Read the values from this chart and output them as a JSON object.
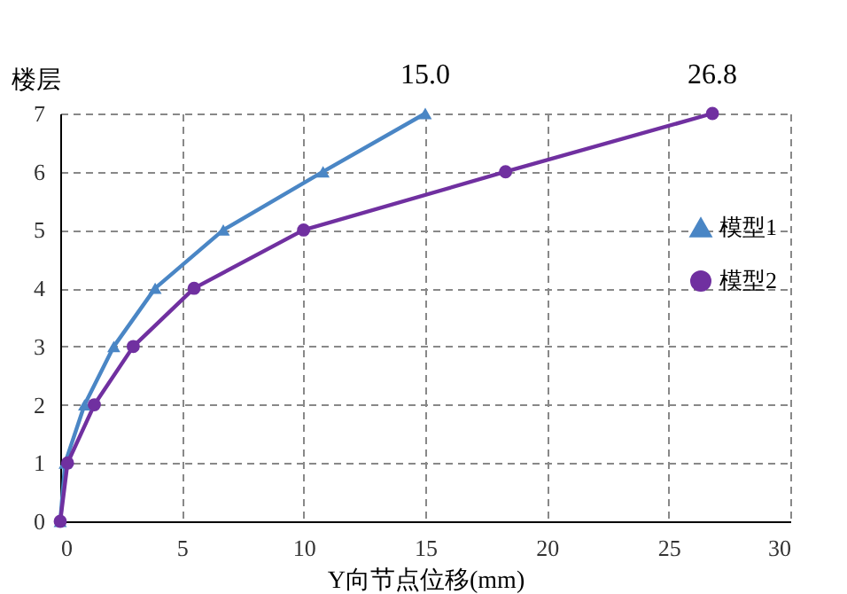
{
  "chart_data": {
    "type": "line",
    "xlabel": "Y向节点位移(mm)",
    "ylabel": "楼层",
    "xlim": [
      0,
      30
    ],
    "xticks": [
      0,
      5,
      10,
      15,
      20,
      25,
      30
    ],
    "ylim": [
      0,
      7
    ],
    "yticks": [
      0,
      1,
      2,
      3,
      4,
      5,
      6,
      7
    ],
    "grid": true,
    "legend": "right",
    "line_style": "solid",
    "series": [
      {
        "name": "模型1",
        "color": "#4a86c5",
        "marker": "triangle",
        "x": [
          0,
          0.2,
          1.0,
          2.2,
          3.9,
          6.7,
          10.8,
          15.0
        ],
        "values": [
          0,
          1,
          2,
          3,
          4,
          5,
          6,
          7
        ]
      },
      {
        "name": "模型2",
        "color": "#7030a0",
        "marker": "circle",
        "x": [
          0,
          0.3,
          1.4,
          3.0,
          5.5,
          10.0,
          18.3,
          26.8
        ],
        "values": [
          0,
          1,
          2,
          3,
          4,
          5,
          6,
          7
        ]
      }
    ],
    "annotations": [
      {
        "text": "15.0",
        "x": 15.0,
        "y": 7
      },
      {
        "text": "26.8",
        "x": 26.8,
        "y": 7
      }
    ]
  }
}
